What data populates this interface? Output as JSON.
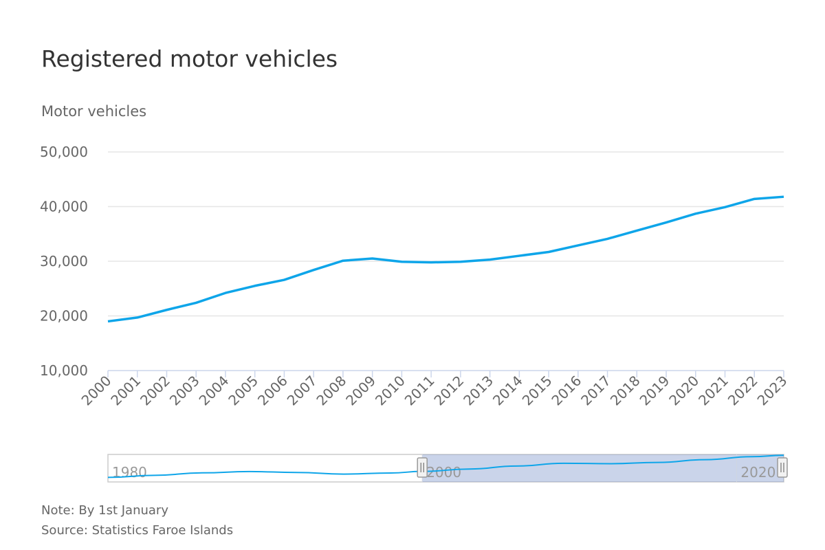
{
  "title": "Registered motor vehicles",
  "note": "Note: By 1st January",
  "source": "Source: Statistics Faroe Islands",
  "chart_data": {
    "type": "line",
    "title": "Registered motor vehicles",
    "ylabel": "Motor vehicles",
    "xlabel": "",
    "x": [
      2000,
      2001,
      2002,
      2003,
      2004,
      2005,
      2006,
      2007,
      2008,
      2009,
      2010,
      2011,
      2012,
      2013,
      2014,
      2015,
      2016,
      2017,
      2018,
      2019,
      2020,
      2021,
      2022,
      2023
    ],
    "values": [
      19000,
      19700,
      21100,
      22400,
      24200,
      25500,
      26600,
      28400,
      30100,
      30500,
      29900,
      29800,
      29900,
      30300,
      31000,
      31700,
      32900,
      34100,
      35600,
      37100,
      38700,
      39900,
      41400,
      41800
    ],
    "ylim": [
      10000,
      50000
    ],
    "yticks": [
      "10,000",
      "20,000",
      "30,000",
      "40,000",
      "50,000"
    ],
    "ytick_values": [
      10000,
      20000,
      30000,
      40000,
      50000
    ],
    "grid": true,
    "legend": "none",
    "color": "#0ea5e9",
    "navigator": {
      "range": [
        1980,
        2023
      ],
      "selected": [
        2000,
        2023
      ],
      "labels": [
        "1980",
        "2000",
        "2020"
      ],
      "label_values": [
        1980,
        2000,
        2020
      ],
      "x": [
        1980,
        1983,
        1986,
        1989,
        1992,
        1995,
        1998,
        2000,
        2003,
        2006,
        2009,
        2012,
        2015,
        2018,
        2021,
        2023
      ],
      "values": [
        10500,
        13500,
        17000,
        18800,
        17500,
        15200,
        16800,
        19000,
        22400,
        26600,
        30500,
        29900,
        31700,
        35600,
        39900,
        41800
      ]
    }
  }
}
